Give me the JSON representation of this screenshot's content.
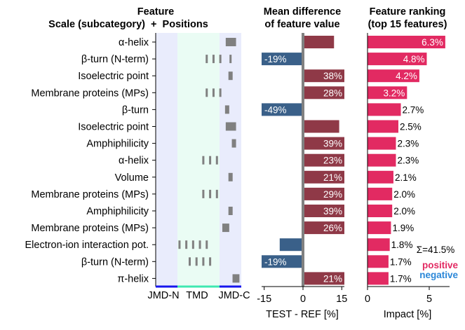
{
  "chart_data": {
    "type": "bar",
    "panels": {
      "feature_positions": {
        "title_line1": "Feature",
        "title_line2": "Scale (subcategory)  +  Positions",
        "regions": [
          "JMD-N",
          "TMD",
          "JMD-C"
        ],
        "region_colors": {
          "jmd": "#e9ecfc",
          "tmd": "#eafcf4",
          "jmd_line": "#1616ee",
          "tmd_line": "#3fe8b0"
        },
        "feature_labels": [
          "α-helix",
          "β-turn (N-term)",
          "Isoelectric point",
          "Membrane proteins (MPs)",
          "β-turn",
          "Isoelectric point",
          "Amphiphilicity",
          "α-helix",
          "Volume",
          "Membrane proteins (MPs)",
          "Amphiphilicity",
          "Membrane proteins (MPs)",
          "Electron-ion interaction pot.",
          "β-turn (N-term)",
          "π-helix"
        ],
        "positions": [
          [
            27,
            28,
            29
          ],
          [
            21,
            23,
            25,
            28
          ],
          [
            28
          ],
          [
            21,
            23,
            25
          ],
          [
            27
          ],
          [
            27,
            28,
            29
          ],
          [
            29
          ],
          [
            20,
            22,
            24
          ],
          [
            28
          ],
          [
            20,
            22,
            24
          ],
          [
            28
          ],
          [
            26,
            27
          ],
          [
            13,
            15,
            17,
            19,
            21
          ],
          [
            16,
            18,
            20,
            22
          ],
          [
            29,
            30
          ]
        ],
        "position_range": [
          6,
          30
        ]
      },
      "mean_difference": {
        "title_line1": "Mean difference",
        "title_line2": "of feature value",
        "xlabel": "TEST - REF [%]",
        "xticks": [
          "-15",
          "0",
          "15"
        ],
        "xlim": [
          -16,
          16
        ],
        "values": [
          12,
          -16,
          16,
          16,
          -16,
          14,
          16,
          16,
          16,
          16,
          16,
          16,
          -9,
          -16,
          16
        ],
        "labels": [
          "",
          "-19%",
          "38%",
          "28%",
          "-49%",
          "",
          "39%",
          "23%",
          "21%",
          "29%",
          "39%",
          "26%",
          "",
          "-19%",
          "21%"
        ],
        "positive_color": "#8f3947",
        "negative_color": "#3a6089"
      },
      "feature_ranking": {
        "title_line1": "Feature ranking",
        "title_line2": "(top 15 features)",
        "xlabel": "Impact [%]",
        "xticks": [
          "0",
          "5"
        ],
        "xlim": [
          0,
          6.6
        ],
        "values": [
          6.3,
          4.8,
          4.2,
          3.2,
          2.7,
          2.5,
          2.3,
          2.3,
          2.1,
          2.0,
          2.0,
          1.9,
          1.8,
          1.7,
          1.7
        ],
        "labels": [
          "6.3%",
          "4.8%",
          "4.2%",
          "3.2%",
          "2.7%",
          "2.5%",
          "2.3%",
          "2.3%",
          "2.1%",
          "2.0%",
          "2.0%",
          "1.9%",
          "1.8%",
          "1.7%",
          "1.7%"
        ],
        "label_inside": [
          true,
          true,
          true,
          true,
          false,
          false,
          false,
          false,
          false,
          false,
          false,
          false,
          false,
          false,
          false
        ],
        "color": "#e22a62",
        "sum_label": "Σ=41.5%",
        "legend": {
          "positive": "positive",
          "negative": "negative",
          "positive_color": "#e22a62",
          "negative_color": "#2b87d8"
        }
      }
    }
  }
}
